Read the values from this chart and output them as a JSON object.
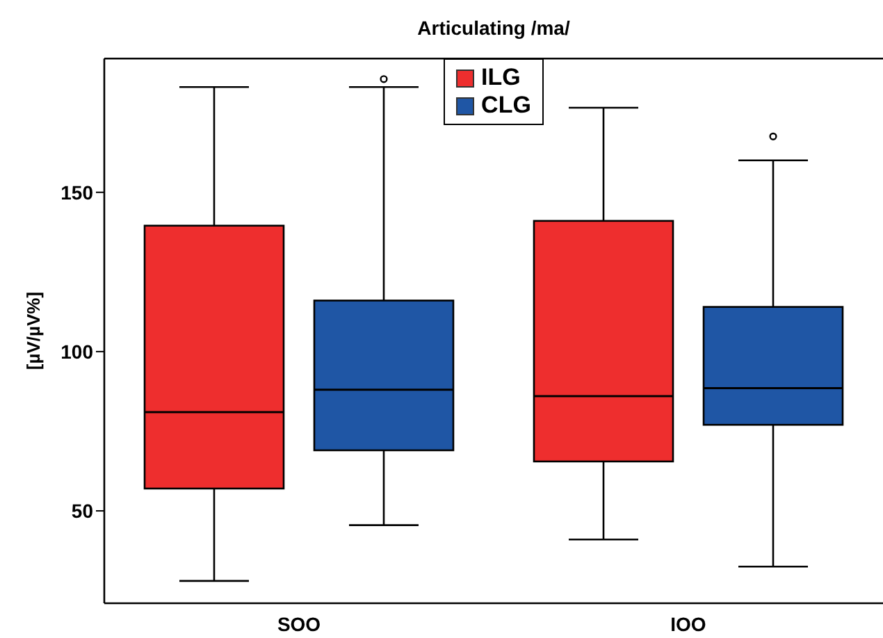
{
  "chart_data": {
    "type": "box",
    "title": "Articulating /ma/",
    "ylabel": "[µV/µV%]",
    "categories": [
      "SOO",
      "IOO"
    ],
    "series": [
      {
        "name": "ILG",
        "color": "#ee2e2e",
        "boxes": [
          {
            "low": 28,
            "q1": 57,
            "median": 81,
            "q3": 139.5,
            "high": 183
          },
          {
            "low": 41,
            "q1": 65.5,
            "median": 86,
            "q3": 141,
            "high": 176.5
          }
        ]
      },
      {
        "name": "CLG",
        "color": "#1f56a5",
        "boxes": [
          {
            "low": 45.5,
            "q1": 69,
            "median": 88,
            "q3": 116,
            "high": 183,
            "outliers": [
              185.5
            ]
          },
          {
            "low": 32.5,
            "q1": 77,
            "median": 88.5,
            "q3": 114,
            "high": 160,
            "outliers": [
              167.5
            ]
          }
        ]
      }
    ],
    "ylim": [
      21,
      192
    ],
    "yticks": [
      50,
      100,
      150
    ],
    "legend": "top"
  }
}
